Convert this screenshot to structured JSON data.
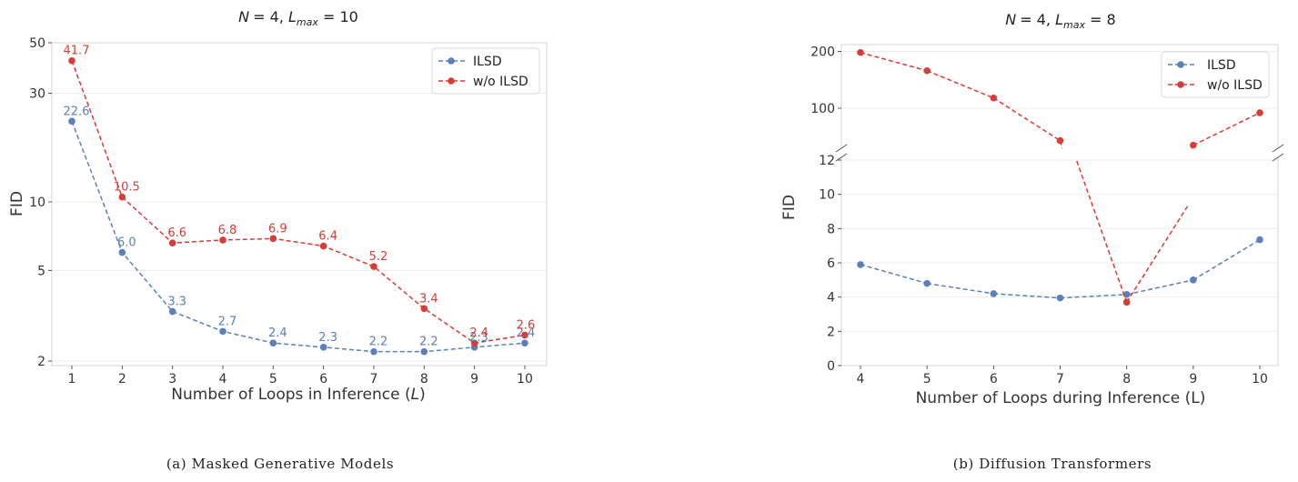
{
  "chart_data": [
    {
      "type": "line",
      "panel": "a",
      "title": "N = 4, L_max = 10",
      "title_parts": {
        "n": "N",
        "n_val": "= 4, ",
        "l": "L",
        "sub": "max",
        "l_val": " = 10"
      },
      "xlabel": "Number of Loops in Inference (L)",
      "xlabel_parts": {
        "pre": "Number of Loops in Inference (",
        "var": "L",
        "post": ")"
      },
      "ylabel": "FID",
      "y_scale": "log",
      "x": [
        1,
        2,
        3,
        4,
        5,
        6,
        7,
        8,
        9,
        10
      ],
      "xticks": [
        "1",
        "2",
        "3",
        "4",
        "5",
        "6",
        "7",
        "8",
        "9",
        "10"
      ],
      "yticks": [
        {
          "value": 2,
          "label": "2"
        },
        {
          "value": 5,
          "label": "5"
        },
        {
          "value": 10,
          "label": "10"
        },
        {
          "value": 30,
          "label": "30"
        },
        {
          "value": 50,
          "label": "50"
        }
      ],
      "series": [
        {
          "name": "ILSD",
          "color": "#5b7fb9",
          "values": [
            22.6,
            6.0,
            3.3,
            2.7,
            2.4,
            2.3,
            2.2,
            2.2,
            2.3,
            2.4
          ],
          "labels": [
            "22.6",
            "6.0",
            "3.3",
            "2.7",
            "2.4",
            "2.3",
            "2.2",
            "2.2",
            "2.3",
            "2.4"
          ]
        },
        {
          "name": "w/o ILSD",
          "color": "#d93b36",
          "values": [
            41.7,
            10.5,
            6.6,
            6.8,
            6.9,
            6.4,
            5.2,
            3.4,
            2.4,
            2.6
          ],
          "labels": [
            "41.7",
            "10.5",
            "6.6",
            "6.8",
            "6.9",
            "6.4",
            "5.2",
            "3.4",
            "2.4",
            "2.6"
          ]
        }
      ],
      "legend": [
        "ILSD",
        "w/o ILSD"
      ],
      "legend_position": "top-right",
      "caption": "(a) Masked Generative Models"
    },
    {
      "type": "line",
      "panel": "b",
      "title": "N = 4, L_max = 8",
      "title_parts": {
        "n": "N",
        "n_val": "= 4, ",
        "l": "L",
        "sub": "max",
        "l_val": " = 8"
      },
      "xlabel": "Number of Loops during Inference (L)",
      "ylabel": "FID",
      "y_scale": "broken",
      "x": [
        4,
        5,
        6,
        7,
        8,
        9,
        10
      ],
      "xticks": [
        "4",
        "5",
        "6",
        "7",
        "8",
        "9",
        "10"
      ],
      "yticks_upper": [
        {
          "value": 100,
          "label": "100"
        },
        {
          "value": 200,
          "label": "200"
        }
      ],
      "yticks_lower": [
        {
          "value": 0,
          "label": "0"
        },
        {
          "value": 2,
          "label": "2"
        },
        {
          "value": 4,
          "label": "4"
        },
        {
          "value": 6,
          "label": "6"
        },
        {
          "value": 8,
          "label": "8"
        },
        {
          "value": 10,
          "label": "10"
        },
        {
          "value": 12,
          "label": "12"
        }
      ],
      "series": [
        {
          "name": "ILSD",
          "color": "#5b7fb9",
          "values": [
            5.9,
            4.8,
            4.2,
            3.95,
            4.15,
            5.0,
            7.35
          ]
        },
        {
          "name": "w/o ILSD",
          "color": "#d93b36",
          "values": [
            198,
            166,
            118,
            43,
            3.7,
            35,
            92
          ]
        }
      ],
      "legend": [
        "ILSD",
        "w/o ILSD"
      ],
      "legend_position": "top-right",
      "caption": "(b) Diffusion Transformers"
    }
  ]
}
